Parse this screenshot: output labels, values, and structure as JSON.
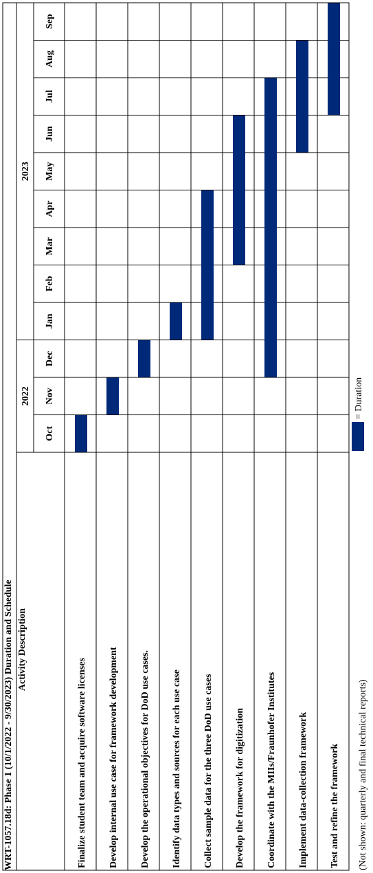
{
  "chart_data": {
    "type": "gantt",
    "title": "WRT-1057.18d: Phase 1 (10/1/2022 - 9/30/2023) Duration and Schedule",
    "activity_header": "Activity Description",
    "years": [
      {
        "label": "2022",
        "months": 3
      },
      {
        "label": "2023",
        "months": 9
      }
    ],
    "months": [
      "Oct",
      "Nov",
      "Dec",
      "Jan",
      "Feb",
      "Mar",
      "Apr",
      "May",
      "Jun",
      "Jul",
      "Aug",
      "Sep"
    ],
    "tasks": [
      {
        "name": "Finalize student team and acquire software licenses",
        "start": "Oct",
        "end": "Oct"
      },
      {
        "name": "Develop internal use case for framework development",
        "start": "Nov",
        "end": "Nov"
      },
      {
        "name": "Develop the operational objectives for DoD use cases.",
        "start": "Dec",
        "end": "Dec"
      },
      {
        "name": "Identify data types and sources for each use case",
        "start": "Jan",
        "end": "Jan"
      },
      {
        "name": "Collect sample data for the three DoD use cases",
        "start": "Jan",
        "end": "Apr"
      },
      {
        "name": "Develop the framework for digitization",
        "start": "Mar",
        "end": "Jun"
      },
      {
        "name": "Coordinate with the MIIs/Fraunhofer Institutes",
        "start": "Dec",
        "end": "Jul"
      },
      {
        "name": "Implement data-collection framework",
        "start": "Jun",
        "end": "Aug"
      },
      {
        "name": "Test and refine the framework",
        "start": "Jul",
        "end": "Sep"
      }
    ],
    "legend": "= Duration",
    "footnote": "(Not shown: quarterly and final technical reports)",
    "bar_color": "#00297a",
    "grid_color": "#000000"
  }
}
